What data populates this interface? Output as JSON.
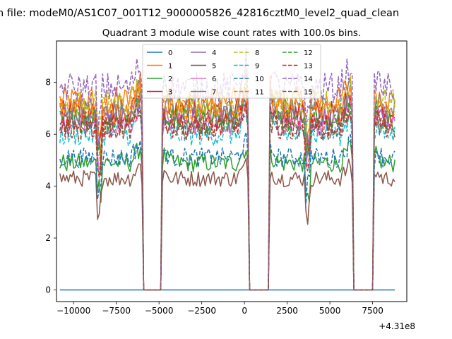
{
  "suptitle": "n file: modeM0/AS1C07_001T12_9000005826_42816cztM0_level2_quad_clean",
  "chart_data": {
    "type": "line",
    "title": "Quadrant 3 module wise count rates with 100.0s bins.",
    "xlabel": "",
    "ylabel": "",
    "x_offset_label": "+4.31e8",
    "x_offset": 431000000,
    "xlim": [
      -11000,
      9500
    ],
    "ylim": [
      -0.45,
      9.6
    ],
    "x_range": [
      -10800,
      8800
    ],
    "xticks": [
      -10000,
      -7500,
      -5000,
      -2500,
      0,
      2500,
      5000,
      7500
    ],
    "xtick_labels": [
      "−10000",
      "−7500",
      "−5000",
      "−2500",
      "0",
      "2500",
      "5000",
      "7500"
    ],
    "yticks": [
      0,
      2,
      4,
      6,
      8
    ],
    "ytick_labels": [
      "0",
      "2",
      "4",
      "6",
      "8"
    ],
    "gaps": [
      [
        -6000,
        -4800
      ],
      [
        200,
        1450
      ],
      [
        6300,
        7600
      ]
    ],
    "legend_position": "upper center",
    "series": [
      {
        "name": "0",
        "color": "#1f77b4",
        "dash": "solid",
        "level": 0
      },
      {
        "name": "1",
        "color": "#ff7f0e",
        "dash": "solid",
        "level": 7.3
      },
      {
        "name": "2",
        "color": "#2ca02c",
        "dash": "solid",
        "level": 4.9
      },
      {
        "name": "3",
        "color": "#d62728",
        "dash": "solid",
        "level": 6.8
      },
      {
        "name": "4",
        "color": "#9467bd",
        "dash": "solid",
        "level": 6.6
      },
      {
        "name": "5",
        "color": "#8c564b",
        "dash": "solid",
        "level": 4.3
      },
      {
        "name": "6",
        "color": "#e377c2",
        "dash": "solid",
        "level": 6.4
      },
      {
        "name": "7",
        "color": "#7f7f7f",
        "dash": "solid",
        "level": 6.9
      },
      {
        "name": "8",
        "color": "#bcbd22",
        "dash": "dashed",
        "level": 7.2
      },
      {
        "name": "9",
        "color": "#17becf",
        "dash": "dashed",
        "level": 6.0
      },
      {
        "name": "10",
        "color": "#1f77b4",
        "dash": "dashed",
        "level": 5.1
      },
      {
        "name": "11",
        "color": "#ff7f0e",
        "dash": "dashed",
        "level": 6.9
      },
      {
        "name": "12",
        "color": "#2ca02c",
        "dash": "dashed",
        "level": 6.5
      },
      {
        "name": "13",
        "color": "#d62728",
        "dash": "dashed",
        "level": 6.3
      },
      {
        "name": "14",
        "color": "#9467bd",
        "dash": "dashed",
        "level": 7.8
      },
      {
        "name": "15",
        "color": "#8c564b",
        "dash": "dashed",
        "level": 6.2
      }
    ]
  }
}
